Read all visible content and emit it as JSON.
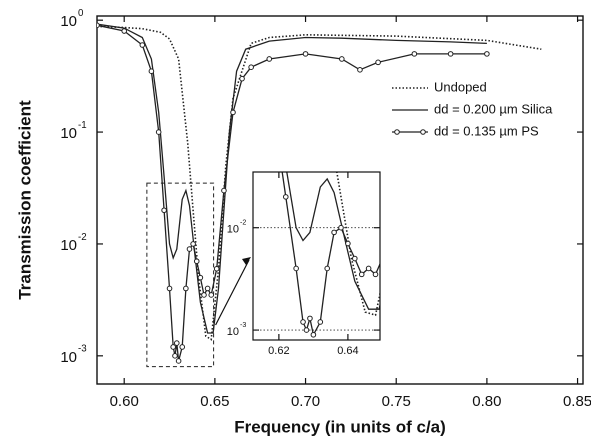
{
  "chart_data": {
    "type": "line",
    "xlabel": "Frequency (in units of c/a)",
    "ylabel": "Transmission coefficient",
    "xlim": [
      0.585,
      0.853
    ],
    "ylim": [
      0.00056,
      1.09
    ],
    "log_y": true,
    "xticks": [
      {
        "value": 0.6,
        "label": "0.60"
      },
      0.65,
      {
        "value": 0.7,
        "label": "0.70"
      },
      0.75,
      {
        "value": 0.8,
        "label": "0.80"
      },
      0.85
    ],
    "yticks": [
      {
        "value": 1,
        "label": "10",
        "exp": "0"
      },
      {
        "value": 0.1,
        "label": "10",
        "exp": "-1"
      },
      {
        "value": 0.01,
        "label": "10",
        "exp": "-2"
      },
      {
        "value": 0.001,
        "label": "10",
        "exp": "-3"
      }
    ],
    "series": [
      {
        "name": "Undoped",
        "color": "#222",
        "style": "dotted",
        "x": [
          0.585,
          0.6,
          0.61,
          0.62,
          0.625,
          0.63,
          0.635,
          0.638,
          0.641,
          0.645,
          0.648,
          0.652,
          0.656,
          0.66,
          0.67,
          0.68,
          0.7,
          0.75,
          0.8,
          0.83
        ],
        "values": [
          0.88,
          0.86,
          0.84,
          0.78,
          0.68,
          0.45,
          0.08,
          0.02,
          0.005,
          0.0015,
          0.0014,
          0.006,
          0.05,
          0.2,
          0.62,
          0.7,
          0.74,
          0.72,
          0.66,
          0.55
        ]
      },
      {
        "name": "dd = 0.200 µm Silica",
        "color": "#222",
        "style": "solid",
        "x": [
          0.585,
          0.6,
          0.61,
          0.615,
          0.619,
          0.622,
          0.625,
          0.627,
          0.629,
          0.632,
          0.634,
          0.636,
          0.639,
          0.642,
          0.646,
          0.649,
          0.652,
          0.655,
          0.658,
          0.662,
          0.667,
          0.68,
          0.7,
          0.72,
          0.75,
          0.78,
          0.8
        ],
        "values": [
          0.92,
          0.85,
          0.7,
          0.45,
          0.15,
          0.04,
          0.01,
          0.0075,
          0.009,
          0.025,
          0.03,
          0.022,
          0.008,
          0.003,
          0.0016,
          0.0016,
          0.004,
          0.02,
          0.1,
          0.35,
          0.55,
          0.65,
          0.7,
          0.69,
          0.66,
          0.64,
          0.62
        ]
      },
      {
        "name": "dd = 0.135 µm PS",
        "color": "#222",
        "style": "circles",
        "x": [
          0.585,
          0.6,
          0.61,
          0.615,
          0.619,
          0.622,
          0.625,
          0.627,
          0.628,
          0.629,
          0.63,
          0.632,
          0.634,
          0.636,
          0.638,
          0.64,
          0.642,
          0.644,
          0.646,
          0.648,
          0.651,
          0.655,
          0.66,
          0.665,
          0.67,
          0.68,
          0.7,
          0.72,
          0.73,
          0.74,
          0.76,
          0.78,
          0.8
        ],
        "values": [
          0.9,
          0.8,
          0.6,
          0.35,
          0.1,
          0.02,
          0.004,
          0.0012,
          0.001,
          0.0013,
          0.0009,
          0.0012,
          0.004,
          0.009,
          0.01,
          0.007,
          0.005,
          0.0035,
          0.004,
          0.0035,
          0.006,
          0.03,
          0.15,
          0.3,
          0.38,
          0.45,
          0.5,
          0.45,
          0.36,
          0.42,
          0.5,
          0.5,
          0.5
        ]
      }
    ],
    "inset": {
      "xlim": [
        0.6125,
        0.6493
      ],
      "ylim": [
        0.0008,
        0.035
      ],
      "xticks": [
        0.62,
        0.64
      ],
      "yticks": [
        {
          "value": 0.01,
          "label": "10",
          "exp": "-2"
        },
        {
          "value": 0.001,
          "label": "10",
          "exp": "-3"
        }
      ]
    }
  }
}
